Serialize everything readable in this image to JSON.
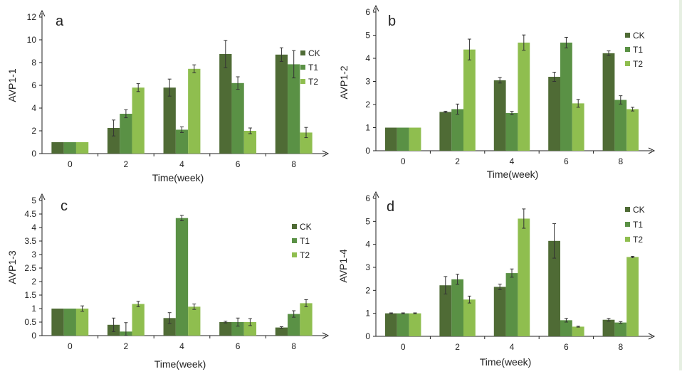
{
  "colors": {
    "CK": "#4f6b35",
    "T1": "#5a9145",
    "T2": "#8fbe4f",
    "axis": "#222222",
    "error": "#333333"
  },
  "chart_data": [
    {
      "type": "bar",
      "panel_letter": "a",
      "ylabel": "AVP1-1",
      "xlabel": "Time(week)",
      "categories": [
        "0",
        "2",
        "4",
        "6",
        "8"
      ],
      "ylim": [
        0,
        12
      ],
      "yticks": [
        "0",
        "2",
        "4",
        "6",
        "8",
        "10",
        "12"
      ],
      "legend": "right",
      "series": [
        {
          "name": "CK",
          "values": [
            1.0,
            2.25,
            5.8,
            8.75,
            8.7
          ],
          "errors": [
            0.0,
            0.7,
            0.75,
            1.2,
            0.6
          ]
        },
        {
          "name": "T1",
          "values": [
            1.0,
            3.5,
            2.1,
            6.2,
            7.85
          ],
          "errors": [
            0.0,
            0.35,
            0.25,
            0.55,
            1.2
          ]
        },
        {
          "name": "T2",
          "values": [
            1.0,
            5.8,
            7.45,
            2.0,
            1.85
          ],
          "errors": [
            0.0,
            0.35,
            0.35,
            0.25,
            0.45
          ]
        }
      ]
    },
    {
      "type": "bar",
      "panel_letter": "b",
      "ylabel": "AVP1-2",
      "xlabel": "Time(week)",
      "categories": [
        "0",
        "2",
        "4",
        "6",
        "8"
      ],
      "ylim": [
        0,
        6
      ],
      "yticks": [
        "0",
        "1",
        "2",
        "3",
        "4",
        "5",
        "6"
      ],
      "legend": "right",
      "series": [
        {
          "name": "CK",
          "values": [
            1.0,
            1.68,
            3.05,
            3.2,
            4.22
          ],
          "errors": [
            0.0,
            0.03,
            0.12,
            0.2,
            0.1
          ]
        },
        {
          "name": "T1",
          "values": [
            1.0,
            1.8,
            1.63,
            4.68,
            2.2
          ],
          "errors": [
            0.0,
            0.22,
            0.07,
            0.23,
            0.18
          ]
        },
        {
          "name": "T2",
          "values": [
            1.0,
            4.38,
            4.68,
            2.05,
            1.8
          ],
          "errors": [
            0.0,
            0.45,
            0.33,
            0.17,
            0.08
          ]
        }
      ]
    },
    {
      "type": "bar",
      "panel_letter": "c",
      "ylabel": "AVP1-3",
      "xlabel": "Time(week)",
      "categories": [
        "0",
        "2",
        "4",
        "6",
        "8"
      ],
      "ylim": [
        0,
        5
      ],
      "yticks": [
        "0",
        "0.5",
        "1",
        "1.5",
        "2",
        "2.5",
        "3",
        "3.5",
        "4",
        "4.5",
        "5"
      ],
      "legend": "right",
      "series": [
        {
          "name": "CK",
          "values": [
            1.0,
            0.4,
            0.65,
            0.5,
            0.3
          ],
          "errors": [
            0.0,
            0.25,
            0.2,
            0.03,
            0.03
          ]
        },
        {
          "name": "T1",
          "values": [
            1.0,
            0.15,
            4.35,
            0.5,
            0.8
          ],
          "errors": [
            0.0,
            0.33,
            0.1,
            0.15,
            0.12
          ]
        },
        {
          "name": "T2",
          "values": [
            1.0,
            1.17,
            1.07,
            0.5,
            1.2
          ],
          "errors": [
            0.1,
            0.1,
            0.1,
            0.13,
            0.13
          ]
        }
      ]
    },
    {
      "type": "bar",
      "panel_letter": "d",
      "ylabel": "AVP1-4",
      "xlabel": "Time(week)",
      "categories": [
        "0",
        "2",
        "4",
        "6",
        "8"
      ],
      "ylim": [
        0,
        6
      ],
      "yticks": [
        "0",
        "1",
        "2",
        "3",
        "4",
        "5",
        "6"
      ],
      "legend": "right",
      "series": [
        {
          "name": "CK",
          "values": [
            1.0,
            2.22,
            2.15,
            4.15,
            0.72
          ],
          "errors": [
            0.02,
            0.38,
            0.12,
            0.75,
            0.06
          ]
        },
        {
          "name": "T1",
          "values": [
            1.0,
            2.48,
            2.75,
            0.7,
            0.6
          ],
          "errors": [
            0.02,
            0.22,
            0.18,
            0.08,
            0.04
          ]
        },
        {
          "name": "T2",
          "values": [
            1.0,
            1.6,
            5.12,
            0.42,
            3.45
          ],
          "errors": [
            0.02,
            0.15,
            0.42,
            0.02,
            0.03
          ]
        }
      ]
    }
  ]
}
